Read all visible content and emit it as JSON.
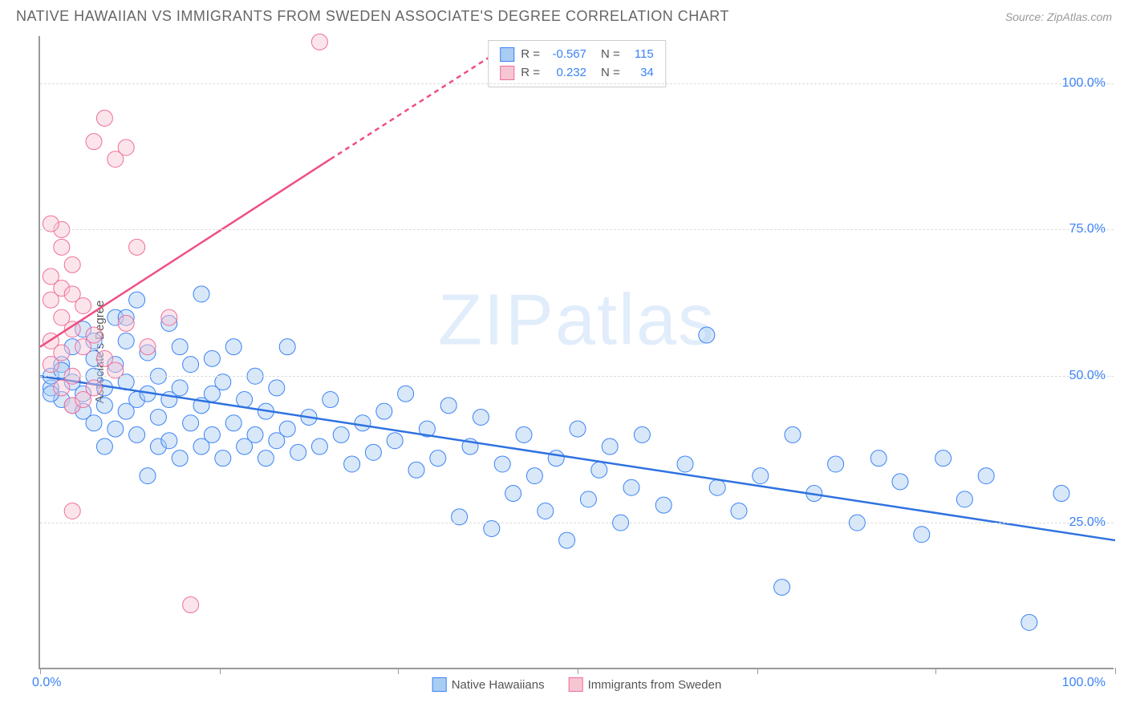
{
  "header": {
    "title": "NATIVE HAWAIIAN VS IMMIGRANTS FROM SWEDEN ASSOCIATE'S DEGREE CORRELATION CHART",
    "source": "Source: ZipAtlas.com"
  },
  "chart": {
    "type": "scatter",
    "ylabel": "Associate's Degree",
    "watermark": {
      "bold": "ZIP",
      "light": "atlas"
    },
    "background_color": "#ffffff",
    "grid_color": "#dddddd",
    "axis_color": "#999999",
    "tick_label_color": "#3b82f6",
    "xlim": [
      0,
      100
    ],
    "ylim": [
      0,
      108
    ],
    "yticks": [
      25,
      50,
      75,
      100
    ],
    "ytick_labels": [
      "25.0%",
      "50.0%",
      "75.0%",
      "100.0%"
    ],
    "xtick_positions": [
      0,
      16.7,
      33.3,
      50,
      66.7,
      83.3,
      100
    ],
    "x_left_label": "0.0%",
    "x_right_label": "100.0%",
    "marker_radius": 10,
    "marker_opacity": 0.45,
    "series": [
      {
        "name": "Native Hawaiians",
        "fill_color": "#a9cdf2",
        "stroke_color": "#3b82f6",
        "line_color": "#2f72e0",
        "line_width": 2.5,
        "regression": {
          "x1": 0,
          "y1": 50,
          "x2": 100,
          "y2": 22
        },
        "R": "-0.567",
        "N": "115",
        "points": [
          [
            1,
            48
          ],
          [
            1,
            50
          ],
          [
            2,
            46
          ],
          [
            2,
            52
          ],
          [
            3,
            45
          ],
          [
            3,
            49
          ],
          [
            3,
            55
          ],
          [
            4,
            44
          ],
          [
            4,
            47
          ],
          [
            4,
            58
          ],
          [
            5,
            42
          ],
          [
            5,
            50
          ],
          [
            5,
            53
          ],
          [
            6,
            38
          ],
          [
            6,
            45
          ],
          [
            6,
            48
          ],
          [
            7,
            41
          ],
          [
            7,
            52
          ],
          [
            7,
            60
          ],
          [
            8,
            44
          ],
          [
            8,
            49
          ],
          [
            8,
            56
          ],
          [
            9,
            40
          ],
          [
            9,
            46
          ],
          [
            9,
            63
          ],
          [
            10,
            33
          ],
          [
            10,
            47
          ],
          [
            10,
            54
          ],
          [
            11,
            38
          ],
          [
            11,
            43
          ],
          [
            11,
            50
          ],
          [
            12,
            39
          ],
          [
            12,
            46
          ],
          [
            12,
            59
          ],
          [
            13,
            36
          ],
          [
            13,
            48
          ],
          [
            13,
            55
          ],
          [
            14,
            42
          ],
          [
            14,
            52
          ],
          [
            15,
            38
          ],
          [
            15,
            45
          ],
          [
            15,
            64
          ],
          [
            16,
            40
          ],
          [
            16,
            47
          ],
          [
            16,
            53
          ],
          [
            17,
            36
          ],
          [
            17,
            49
          ],
          [
            18,
            42
          ],
          [
            18,
            55
          ],
          [
            19,
            38
          ],
          [
            19,
            46
          ],
          [
            20,
            40
          ],
          [
            20,
            50
          ],
          [
            21,
            36
          ],
          [
            21,
            44
          ],
          [
            22,
            39
          ],
          [
            22,
            48
          ],
          [
            23,
            41
          ],
          [
            23,
            55
          ],
          [
            24,
            37
          ],
          [
            25,
            43
          ],
          [
            26,
            38
          ],
          [
            27,
            46
          ],
          [
            28,
            40
          ],
          [
            29,
            35
          ],
          [
            30,
            42
          ],
          [
            31,
            37
          ],
          [
            32,
            44
          ],
          [
            33,
            39
          ],
          [
            34,
            47
          ],
          [
            35,
            34
          ],
          [
            36,
            41
          ],
          [
            37,
            36
          ],
          [
            38,
            45
          ],
          [
            39,
            26
          ],
          [
            40,
            38
          ],
          [
            41,
            43
          ],
          [
            42,
            24
          ],
          [
            43,
            35
          ],
          [
            44,
            30
          ],
          [
            45,
            40
          ],
          [
            46,
            33
          ],
          [
            47,
            27
          ],
          [
            48,
            36
          ],
          [
            49,
            22
          ],
          [
            50,
            41
          ],
          [
            51,
            29
          ],
          [
            52,
            34
          ],
          [
            53,
            38
          ],
          [
            54,
            25
          ],
          [
            55,
            31
          ],
          [
            56,
            40
          ],
          [
            58,
            28
          ],
          [
            60,
            35
          ],
          [
            62,
            57
          ],
          [
            63,
            31
          ],
          [
            65,
            27
          ],
          [
            67,
            33
          ],
          [
            69,
            14
          ],
          [
            70,
            40
          ],
          [
            72,
            30
          ],
          [
            74,
            35
          ],
          [
            76,
            25
          ],
          [
            78,
            36
          ],
          [
            80,
            32
          ],
          [
            82,
            23
          ],
          [
            84,
            36
          ],
          [
            86,
            29
          ],
          [
            88,
            33
          ],
          [
            92,
            8
          ],
          [
            95,
            30
          ],
          [
            1,
            47
          ],
          [
            2,
            51
          ],
          [
            5,
            56
          ],
          [
            8,
            60
          ]
        ]
      },
      {
        "name": "Immigrants from Sweden",
        "fill_color": "#f7c6d3",
        "stroke_color": "#ef6e9a",
        "line_color": "#ef4f83",
        "line_width": 2.5,
        "regression": {
          "x1": 0,
          "y1": 55,
          "x2": 27,
          "y2": 87
        },
        "regression_dashed_ext": {
          "x1": 27,
          "y1": 87,
          "x2": 44,
          "y2": 107
        },
        "R": "0.232",
        "N": "34",
        "points": [
          [
            1,
            52
          ],
          [
            1,
            56
          ],
          [
            1,
            63
          ],
          [
            1,
            67
          ],
          [
            2,
            48
          ],
          [
            2,
            54
          ],
          [
            2,
            60
          ],
          [
            2,
            65
          ],
          [
            2,
            72
          ],
          [
            2,
            75
          ],
          [
            3,
            45
          ],
          [
            3,
            50
          ],
          [
            3,
            58
          ],
          [
            3,
            64
          ],
          [
            3,
            69
          ],
          [
            4,
            46
          ],
          [
            4,
            55
          ],
          [
            4,
            62
          ],
          [
            5,
            48
          ],
          [
            5,
            57
          ],
          [
            5,
            90
          ],
          [
            6,
            53
          ],
          [
            6,
            94
          ],
          [
            7,
            51
          ],
          [
            7,
            87
          ],
          [
            8,
            59
          ],
          [
            8,
            89
          ],
          [
            9,
            72
          ],
          [
            10,
            55
          ],
          [
            12,
            60
          ],
          [
            14,
            11
          ],
          [
            3,
            27
          ],
          [
            26,
            107
          ],
          [
            1,
            76
          ]
        ]
      }
    ],
    "bottom_legend": [
      {
        "label": "Native Hawaiians",
        "fill": "#a9cdf2",
        "stroke": "#3b82f6"
      },
      {
        "label": "Immigrants from Sweden",
        "fill": "#f7c6d3",
        "stroke": "#ef6e9a"
      }
    ]
  }
}
